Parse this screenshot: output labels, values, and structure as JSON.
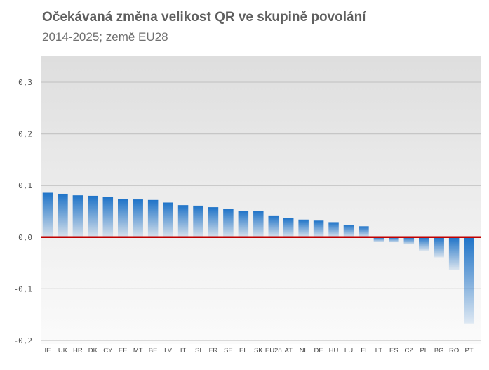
{
  "chart_data": {
    "type": "bar",
    "title": "Očekávaná změna velikost QR ve skupině povolání",
    "subtitle": "2014-2025; země EU28",
    "xlabel": "",
    "ylabel": "",
    "ylim": [
      -0.2,
      0.35
    ],
    "yticks": [
      0.3,
      0.2,
      0.1,
      0.0,
      -0.1,
      -0.2
    ],
    "ytick_labels": [
      "0,3",
      "0,2",
      "0,1",
      "0,0",
      "-0,1",
      "-0,2"
    ],
    "grid": true,
    "legend": "none",
    "categories": [
      "IE",
      "UK",
      "HR",
      "DK",
      "CY",
      "EE",
      "MT",
      "BE",
      "LV",
      "IT",
      "SI",
      "FR",
      "SE",
      "EL",
      "SK",
      "EU28",
      "AT",
      "NL",
      "DE",
      "HU",
      "LU",
      "FI",
      "LT",
      "ES",
      "CZ",
      "PL",
      "BG",
      "RO",
      "PT"
    ],
    "values": [
      0.086,
      0.084,
      0.081,
      0.08,
      0.078,
      0.074,
      0.073,
      0.072,
      0.067,
      0.062,
      0.061,
      0.058,
      0.055,
      0.051,
      0.051,
      0.042,
      0.037,
      0.034,
      0.032,
      0.029,
      0.024,
      0.021,
      -0.009,
      -0.01,
      -0.014,
      -0.026,
      -0.039,
      -0.063,
      -0.167
    ],
    "colors": {
      "bar": "#1e73c8",
      "zero_line": "#c00000",
      "gridline": "#c6c6c6",
      "plot_bg_top": "#dedede",
      "plot_bg_bottom": "#fbfbfb"
    }
  }
}
